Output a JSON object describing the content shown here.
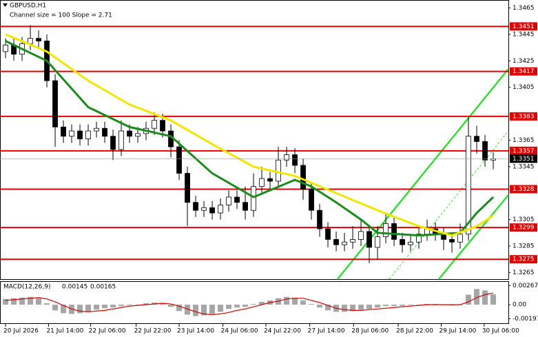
{
  "chart_data": {
    "type": "candlestick",
    "title": "GBPUSD,H1",
    "subtitle": "Channel size = 100 Slope = 2.71",
    "xlim": [
      -0.67,
      60.83
    ],
    "xticks": [
      {
        "value": 0,
        "label": "20 Jul 2026"
      },
      {
        "value": 5.2,
        "label": "21 Jul 14:00"
      },
      {
        "value": 10.3,
        "label": "22 Jul 06:00"
      },
      {
        "value": 15.8,
        "label": "22 Jul 22:00"
      },
      {
        "value": 21,
        "label": "23 Jul 14:00"
      },
      {
        "value": 26.3,
        "label": "24 Jul 06:00"
      },
      {
        "value": 31.5,
        "label": "24 Jul 22:00"
      },
      {
        "value": 36.8,
        "label": "27 Jul 14:00"
      },
      {
        "value": 42.1,
        "label": "28 Jul 06:00"
      },
      {
        "value": 47.5,
        "label": "28 Jul 22:00"
      },
      {
        "value": 52.7,
        "label": "29 Jul 14:00"
      },
      {
        "value": 57.9,
        "label": "30 Jul 06:00"
      }
    ],
    "ylim": [
      1.326,
      1.3471
    ],
    "yticks": [
      1.3465,
      1.3445,
      1.3425,
      1.3405,
      1.3365,
      1.3345,
      1.3305,
      1.3285,
      1.3265
    ],
    "bull_color": "#ffffff",
    "bear_color": "#000000",
    "open": [
      1.3432,
      1.3437,
      1.343,
      1.3438,
      1.3442,
      1.344,
      1.341,
      1.3375,
      1.3368,
      1.3372,
      1.3366,
      1.3372,
      1.3374,
      1.3368,
      1.3358,
      1.3372,
      1.3368,
      1.337,
      1.3374,
      1.338,
      1.3372,
      1.336,
      1.334,
      1.3318,
      1.3312,
      1.3314,
      1.331,
      1.3316,
      1.3322,
      1.3318,
      1.3312,
      1.333,
      1.3336,
      1.3334,
      1.335,
      1.3354,
      1.3346,
      1.3328,
      1.3312,
      1.3298,
      1.329,
      1.3286,
      1.3288,
      1.329,
      1.3296,
      1.3284,
      1.3292,
      1.3302,
      1.329,
      1.3286,
      1.3288,
      1.3294,
      1.3298,
      1.3294,
      1.329,
      1.3288,
      1.3294,
      1.3368,
      1.3364,
      1.335
    ],
    "high": [
      1.3442,
      1.3442,
      1.3443,
      1.3452,
      1.3448,
      1.3445,
      1.3415,
      1.338,
      1.3377,
      1.3377,
      1.3377,
      1.3379,
      1.3379,
      1.3373,
      1.338,
      1.3377,
      1.3375,
      1.3379,
      1.3386,
      1.3385,
      1.3377,
      1.3365,
      1.3345,
      1.3323,
      1.3319,
      1.3319,
      1.3321,
      1.3327,
      1.3327,
      1.333,
      1.334,
      1.3345,
      1.3341,
      1.336,
      1.336,
      1.3359,
      1.3351,
      1.3333,
      1.3317,
      1.3303,
      1.3296,
      1.3295,
      1.33,
      1.3305,
      1.3301,
      1.33,
      1.331,
      1.3307,
      1.3295,
      1.3293,
      1.3299,
      1.3305,
      1.3303,
      1.3299,
      1.3295,
      1.3302,
      1.3382,
      1.3376,
      1.3369,
      1.3356
    ],
    "low": [
      1.3427,
      1.3425,
      1.3425,
      1.3433,
      1.3435,
      1.3405,
      1.336,
      1.3363,
      1.3363,
      1.3361,
      1.3361,
      1.3367,
      1.3363,
      1.335,
      1.3353,
      1.3363,
      1.3363,
      1.3365,
      1.3369,
      1.3367,
      1.3352,
      1.3335,
      1.33,
      1.3307,
      1.3307,
      1.3305,
      1.3305,
      1.3311,
      1.3313,
      1.3305,
      1.3307,
      1.3325,
      1.3328,
      1.3329,
      1.3345,
      1.334,
      1.332,
      1.3305,
      1.3292,
      1.3284,
      1.3281,
      1.3281,
      1.3283,
      1.3285,
      1.3272,
      1.3275,
      1.3287,
      1.3285,
      1.328,
      1.3281,
      1.3283,
      1.3289,
      1.3289,
      1.3282,
      1.328,
      1.3283,
      1.3289,
      1.3355,
      1.3345,
      1.3343
    ],
    "close": [
      1.3437,
      1.343,
      1.3438,
      1.3442,
      1.344,
      1.341,
      1.3375,
      1.3368,
      1.3372,
      1.3366,
      1.3372,
      1.3374,
      1.3368,
      1.3358,
      1.3372,
      1.3368,
      1.337,
      1.3374,
      1.338,
      1.3372,
      1.336,
      1.334,
      1.3318,
      1.3312,
      1.3314,
      1.331,
      1.3316,
      1.3322,
      1.3318,
      1.3312,
      1.333,
      1.3336,
      1.3334,
      1.335,
      1.3354,
      1.3346,
      1.3328,
      1.3312,
      1.3298,
      1.329,
      1.3286,
      1.3288,
      1.329,
      1.3296,
      1.3284,
      1.3292,
      1.3302,
      1.329,
      1.3286,
      1.3288,
      1.3294,
      1.3298,
      1.3294,
      1.329,
      1.3288,
      1.3294,
      1.3368,
      1.3364,
      1.335,
      1.3351
    ],
    "series": [
      {
        "color": "#1a8a1a",
        "x": [
          0,
          5,
          10,
          15,
          20,
          25,
          30,
          35,
          37,
          40,
          43,
          45,
          50,
          55,
          57,
          59
        ],
        "values": [
          1.344,
          1.3425,
          1.339,
          1.3375,
          1.3368,
          1.334,
          1.3322,
          1.3335,
          1.333,
          1.3318,
          1.3305,
          1.3295,
          1.3293,
          1.3295,
          1.331,
          1.3322
        ]
      },
      {
        "color": "#f2e600",
        "x": [
          0,
          5,
          10,
          15,
          20,
          25,
          30,
          35,
          40,
          45,
          50,
          54,
          57,
          59
        ],
        "values": [
          1.3445,
          1.3432,
          1.341,
          1.3392,
          1.338,
          1.3362,
          1.3345,
          1.3338,
          1.3325,
          1.3312,
          1.33,
          1.3293,
          1.33,
          1.3308
        ]
      }
    ],
    "levels": {
      "color": "#e00000",
      "values": [
        1.3451,
        1.3417,
        1.3383,
        1.3357,
        1.3328,
        1.3299,
        1.3275
      ]
    },
    "current_price": {
      "value": 1.3351,
      "color": "#000000"
    },
    "macd": {
      "title": "MACD(12,26,9)",
      "ylim": [
        -0.0027,
        0.0033
      ],
      "yticks": [
        0.00267,
        {
          "value": 0,
          "label": "0.00"
        },
        -0.00197
      ],
      "histogram": {
        "color": "#a6a6a6",
        "values": [
          0.0008,
          0.0009,
          0.001,
          0.0011,
          0.0009,
          0.0002,
          -0.0008,
          -0.0012,
          -0.0013,
          -0.0012,
          -0.001,
          -0.0007,
          -0.0005,
          -0.0004,
          -0.0002,
          -0.0001,
          0.0,
          0.0002,
          0.0003,
          0.0002,
          -0.0003,
          -0.0009,
          -0.0014,
          -0.0016,
          -0.0015,
          -0.0013,
          -0.001,
          -0.0006,
          -0.0004,
          -0.0003,
          0.0001,
          0.0004,
          0.0006,
          0.0009,
          0.0011,
          0.001,
          0.0006,
          0.0001,
          -0.0004,
          -0.0008,
          -0.001,
          -0.001,
          -0.0009,
          -0.0007,
          -0.0006,
          -0.0004,
          -0.0002,
          -0.0002,
          -0.0002,
          -0.0001,
          0.0,
          0.0001,
          0.0001,
          0.0,
          -0.0001,
          0.0,
          0.0014,
          0.0022,
          0.002,
          0.00145
        ]
      },
      "signal": {
        "color": "#d00000",
        "values": [
          0.0006,
          0.0007,
          0.0008,
          0.0009,
          0.001,
          0.0008,
          0.0004,
          -0.0001,
          -0.0006,
          -0.0009,
          -0.001,
          -0.0009,
          -0.0008,
          -0.0006,
          -0.0004,
          -0.0002,
          -0.0001,
          0.0,
          0.0001,
          0.0002,
          0.0001,
          -0.0002,
          -0.0006,
          -0.001,
          -0.0013,
          -0.0014,
          -0.0013,
          -0.0011,
          -0.0008,
          -0.0006,
          -0.0003,
          0.0,
          0.0003,
          0.0005,
          0.0008,
          0.0009,
          0.0009,
          0.0006,
          0.0003,
          -0.0001,
          -0.0005,
          -0.0007,
          -0.0008,
          -0.0008,
          -0.0007,
          -0.0006,
          -0.0005,
          -0.0004,
          -0.0003,
          -0.0002,
          -0.0001,
          0.0,
          0.0,
          0.0,
          0.0,
          0.0,
          0.0004,
          0.001,
          0.0014,
          0.00165
        ]
      }
    }
  }
}
